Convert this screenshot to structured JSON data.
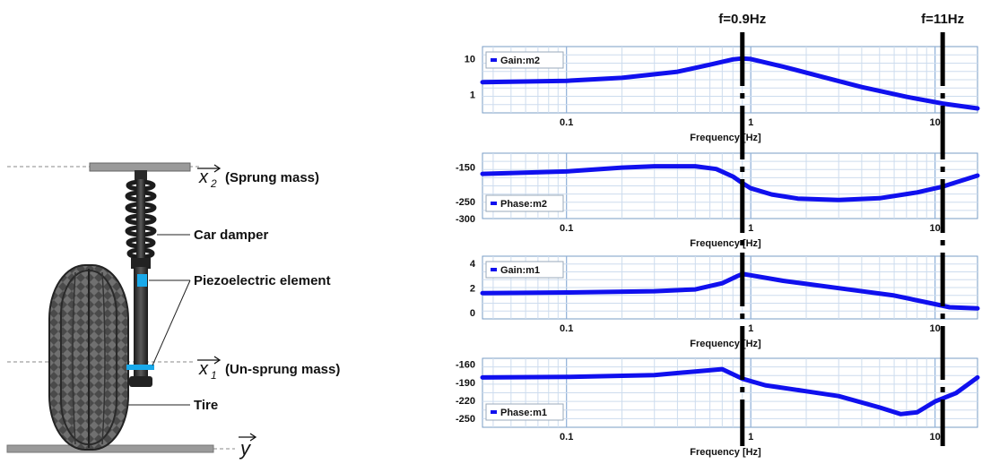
{
  "diagram": {
    "sprung_label": "(Sprung mass)",
    "sprung_var": "x",
    "sprung_sub": "2",
    "damper_label": "Car damper",
    "piezo_label": "Piezoelectric element",
    "unsprung_label": "(Un-sprung mass)",
    "unsprung_var": "x",
    "unsprung_sub": "1",
    "tire_label": "Tire",
    "road_var": "y"
  },
  "markers": {
    "low_label": "f=0.9Hz",
    "high_label": "f=11Hz",
    "low_freq": 0.9,
    "high_freq": 11
  },
  "chart_data": [
    {
      "type": "line",
      "legend": "Gain:m2",
      "xscale": "log",
      "xlim": [
        0.035,
        17
      ],
      "xticks": [
        "0.1",
        "1",
        "10"
      ],
      "xlabel": "Frequency [Hz]",
      "yscale": "log",
      "ylim": [
        0.3,
        22
      ],
      "yticks": [
        "10",
        "1"
      ],
      "ytick_values": [
        10,
        1
      ],
      "x": [
        0.035,
        0.1,
        0.2,
        0.4,
        0.6,
        0.8,
        0.9,
        1.0,
        1.5,
        2.5,
        4,
        7,
        11,
        17
      ],
      "y": [
        2.2,
        2.4,
        2.9,
        4.3,
        6.8,
        9.6,
        10.2,
        9.8,
        6.0,
        3.0,
        1.6,
        0.85,
        0.55,
        0.4
      ]
    },
    {
      "type": "line",
      "legend": "Phase:m2",
      "xscale": "log",
      "xlim": [
        0.035,
        17
      ],
      "xticks": [
        "0.1",
        "1",
        "10"
      ],
      "xlabel": "Frequency [Hz]",
      "yscale": "linear",
      "ylim": [
        -300,
        -110
      ],
      "yticks": [
        "-150",
        "-250",
        "-300"
      ],
      "ytick_values": [
        -150,
        -250,
        -300
      ],
      "x": [
        0.035,
        0.1,
        0.2,
        0.3,
        0.5,
        0.65,
        0.8,
        0.9,
        1.0,
        1.3,
        1.8,
        3,
        5,
        8,
        11,
        17
      ],
      "y": [
        -170,
        -163,
        -152,
        -148,
        -148,
        -156,
        -178,
        -197,
        -212,
        -230,
        -242,
        -246,
        -241,
        -224,
        -207,
        -175
      ]
    },
    {
      "type": "line",
      "legend": "Gain:m1",
      "xscale": "log",
      "xlim": [
        0.035,
        17
      ],
      "xticks": [
        "0.1",
        "1",
        "10"
      ],
      "xlabel": "Frequency [Hz]",
      "yscale": "linear",
      "ylim": [
        -0.5,
        4.6
      ],
      "yticks": [
        "4",
        "2",
        "0"
      ],
      "ytick_values": [
        4,
        2,
        0
      ],
      "x": [
        0.035,
        0.1,
        0.3,
        0.5,
        0.7,
        0.85,
        0.9,
        1.0,
        1.5,
        3,
        6,
        10,
        12,
        17
      ],
      "y": [
        1.6,
        1.65,
        1.75,
        1.9,
        2.4,
        3.0,
        3.15,
        3.05,
        2.6,
        2.0,
        1.4,
        0.7,
        0.45,
        0.35
      ]
    },
    {
      "type": "line",
      "legend": "Phase:m1",
      "xscale": "log",
      "xlim": [
        0.035,
        17
      ],
      "xticks": [
        "0.1",
        "1",
        "10"
      ],
      "xlabel": "Frequency [Hz]",
      "yscale": "linear",
      "ylim": [
        -265,
        -150
      ],
      "yticks": [
        "-160",
        "-190",
        "-220",
        "-250"
      ],
      "ytick_values": [
        -160,
        -190,
        -220,
        -250
      ],
      "x": [
        0.035,
        0.1,
        0.3,
        0.5,
        0.7,
        0.9,
        1.2,
        2,
        3,
        5,
        6.5,
        8,
        10,
        13,
        17
      ],
      "y": [
        -182,
        -181,
        -178,
        -172,
        -168,
        -184,
        -195,
        -205,
        -213,
        -232,
        -243,
        -240,
        -222,
        -208,
        -182
      ]
    }
  ]
}
